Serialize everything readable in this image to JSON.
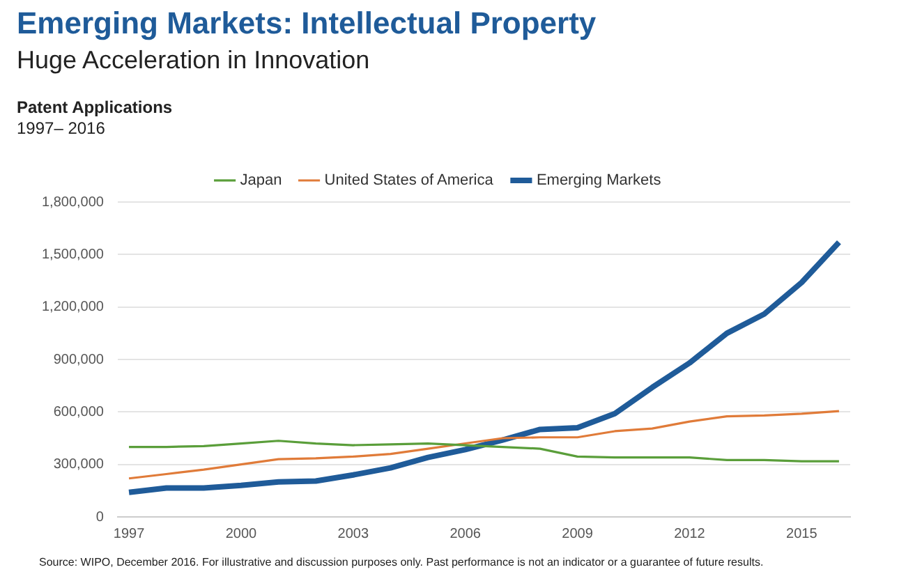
{
  "chart_data": {
    "type": "line",
    "title": "Emerging Markets: Intellectual Property",
    "subtitle": "Huge Acceleration in Innovation",
    "ylabel": "Patent Applications",
    "annotations": [
      "1997– 2016",
      "Source: WIPO, December 2016. For illustrative and discussion purposes only. Past performance is not an indicator or a guarantee of future results."
    ],
    "x": [
      1997,
      1998,
      1999,
      2000,
      2001,
      2002,
      2003,
      2004,
      2005,
      2006,
      2007,
      2008,
      2009,
      2010,
      2011,
      2012,
      2013,
      2014,
      2015,
      2016
    ],
    "series": [
      {
        "name": "Japan",
        "color": "#5a9e3a",
        "values": [
          400000,
          400000,
          405000,
          420000,
          435000,
          420000,
          410000,
          415000,
          420000,
          410000,
          400000,
          390000,
          345000,
          340000,
          340000,
          340000,
          325000,
          325000,
          318000,
          318000
        ]
      },
      {
        "name": "United States of America",
        "color": "#e07b39",
        "values": [
          220000,
          245000,
          270000,
          300000,
          330000,
          335000,
          345000,
          360000,
          390000,
          420000,
          450000,
          455000,
          455000,
          490000,
          505000,
          545000,
          575000,
          580000,
          590000,
          605000
        ]
      },
      {
        "name": "Emerging Markets",
        "color": "#1f5b99",
        "values": [
          140000,
          165000,
          165000,
          180000,
          200000,
          205000,
          240000,
          280000,
          340000,
          385000,
          440000,
          500000,
          510000,
          590000,
          740000,
          880000,
          1050000,
          1160000,
          1340000,
          1570000
        ]
      }
    ],
    "xlim": [
      1996.7,
      2016.3
    ],
    "xticks": [
      1997,
      2000,
      2003,
      2006,
      2009,
      2012,
      2015
    ],
    "ylim": [
      0,
      1800000
    ],
    "yticks": [
      0,
      {
        "value": 300000,
        "label": "300,000"
      },
      {
        "value": 600000,
        "label": "600,000"
      },
      {
        "value": 900000,
        "label": "900,000"
      },
      {
        "value": 1200000,
        "label": "1,200,000"
      },
      {
        "value": 1500000,
        "label": "1,500,000"
      },
      {
        "value": 1800000,
        "label": "1,800,000"
      }
    ],
    "grid": "y",
    "legend": "top",
    "marker": "none",
    "line_style": "solid"
  }
}
